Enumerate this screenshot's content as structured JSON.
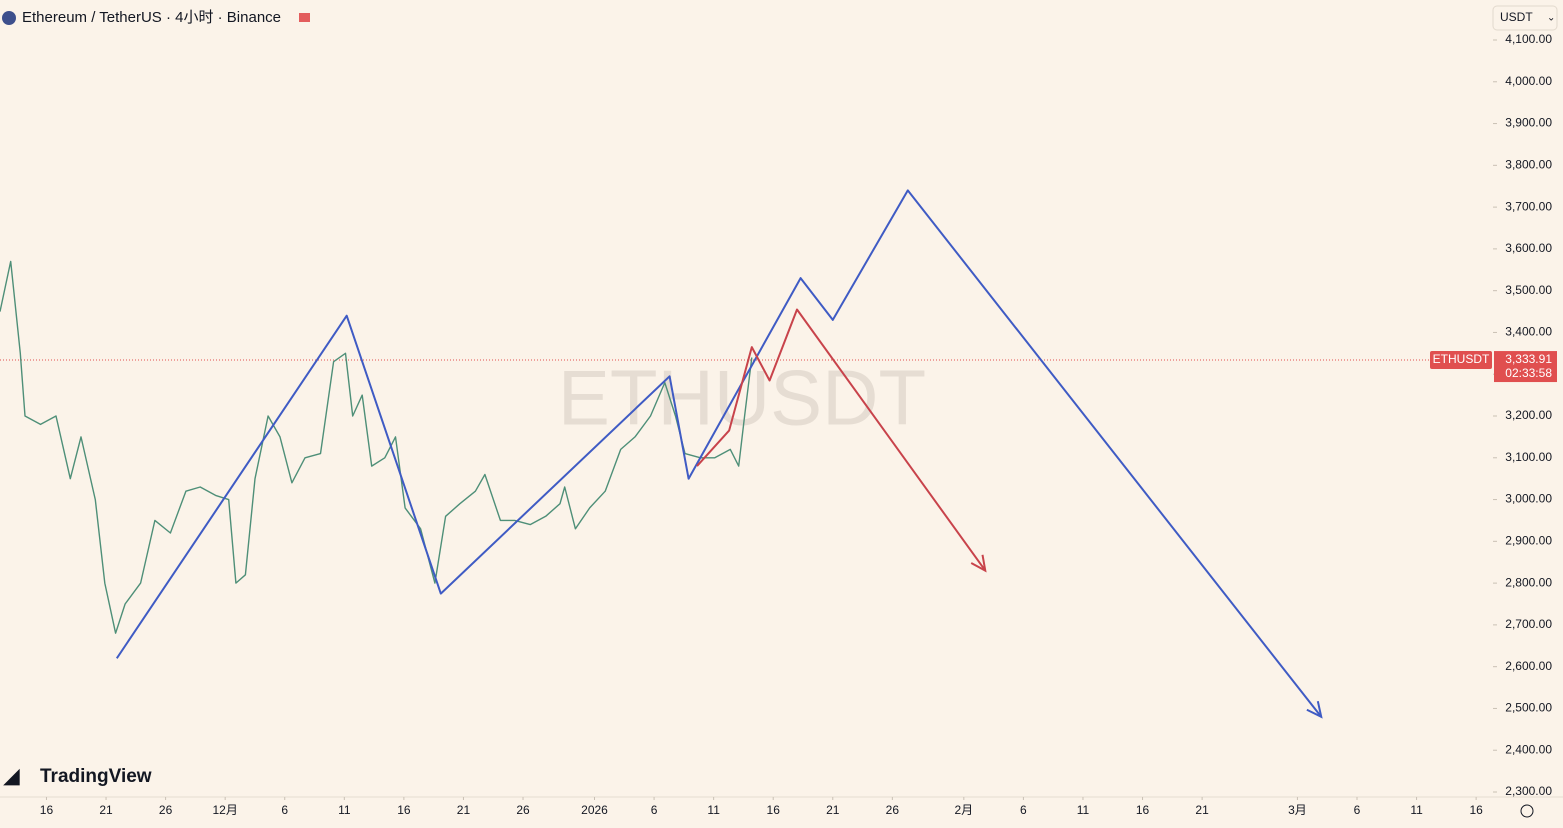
{
  "chart_data": {
    "type": "line",
    "title": "Ethereum / TetherUS · 4小时 · Binance",
    "currency": "USDT",
    "watermark": "ETHUSDT",
    "brand": "TradingView",
    "xlim": [
      -3.9,
      121.5
    ],
    "ylim": [
      2300,
      4100
    ],
    "xticks": [
      {
        "value": 0,
        "label": "16"
      },
      {
        "value": 5,
        "label": "21"
      },
      {
        "value": 10,
        "label": "26"
      },
      {
        "value": 15,
        "label": "12月"
      },
      {
        "value": 20,
        "label": "6"
      },
      {
        "value": 25,
        "label": "11"
      },
      {
        "value": 30,
        "label": "16"
      },
      {
        "value": 35,
        "label": "21"
      },
      {
        "value": 40,
        "label": "26"
      },
      {
        "value": 46,
        "label": "2026"
      },
      {
        "value": 51,
        "label": "6"
      },
      {
        "value": 56,
        "label": "11"
      },
      {
        "value": 61,
        "label": "16"
      },
      {
        "value": 66,
        "label": "21"
      },
      {
        "value": 71,
        "label": "26"
      },
      {
        "value": 77,
        "label": "2月"
      },
      {
        "value": 82,
        "label": "6"
      },
      {
        "value": 87,
        "label": "11"
      },
      {
        "value": 92,
        "label": "16"
      },
      {
        "value": 97,
        "label": "21"
      },
      {
        "value": 105,
        "label": "3月"
      },
      {
        "value": 110,
        "label": "6"
      },
      {
        "value": 115,
        "label": "11"
      },
      {
        "value": 120,
        "label": "16"
      }
    ],
    "yticks": [
      {
        "value": 2300,
        "label": "2,300.00"
      },
      {
        "value": 2400,
        "label": "2,400.00"
      },
      {
        "value": 2500,
        "label": "2,500.00"
      },
      {
        "value": 2600,
        "label": "2,600.00"
      },
      {
        "value": 2700,
        "label": "2,700.00"
      },
      {
        "value": 2800,
        "label": "2,800.00"
      },
      {
        "value": 2900,
        "label": "2,900.00"
      },
      {
        "value": 3000,
        "label": "3,000.00"
      },
      {
        "value": 3100,
        "label": "3,100.00"
      },
      {
        "value": 3200,
        "label": "3,200.00"
      },
      {
        "value": 3300,
        "label": "3,300.00"
      },
      {
        "value": 3400,
        "label": "3,400.00"
      },
      {
        "value": 3500,
        "label": "3,500.00"
      },
      {
        "value": 3600,
        "label": "3,600.00"
      },
      {
        "value": 3700,
        "label": "3,700.00"
      },
      {
        "value": 3800,
        "label": "3,800.00"
      },
      {
        "value": 3900,
        "label": "3,900.00"
      },
      {
        "value": 4000,
        "label": "4,000.00"
      },
      {
        "value": 4100,
        "label": "4,100.00"
      }
    ],
    "price_line": {
      "value": 3333.91,
      "label": "3,333.91",
      "symbol": "ETHUSDT",
      "countdown": "02:33:58",
      "color": "#e04f4f"
    },
    "series": [
      {
        "color": "#4e8f78",
        "arrow": false,
        "x": [
          -3.9,
          -3.0,
          -2.2,
          -1.8,
          -0.5,
          0.8,
          2.0,
          2.9,
          4.1,
          4.9,
          5.8,
          6.6,
          7.9,
          9.1,
          10.4,
          11.7,
          12.9,
          14.2,
          15.3,
          15.9,
          16.7,
          17.5,
          18.6,
          19.6,
          20.6,
          21.7,
          23.0,
          24.1,
          25.1,
          25.7,
          26.5,
          27.3,
          28.4,
          29.3,
          30.1,
          31.4,
          32.6,
          33.5,
          34.7,
          36.0,
          36.8,
          38.1,
          39.3,
          40.6,
          41.9,
          43.1,
          43.5,
          44.4,
          45.6,
          46.9,
          48.2,
          49.4,
          50.7,
          51.9,
          52.8,
          53.6,
          54.9,
          56.1,
          57.4,
          58.1,
          58.6,
          59.2
        ],
        "values": [
          3450,
          3570,
          3350,
          3200,
          3180,
          3200,
          3050,
          3150,
          3000,
          2800,
          2680,
          2750,
          2800,
          2950,
          2920,
          3020,
          3030,
          3010,
          3000,
          2800,
          2820,
          3050,
          3200,
          3150,
          3040,
          3100,
          3110,
          3330,
          3350,
          3200,
          3250,
          3080,
          3100,
          3150,
          2980,
          2930,
          2800,
          2960,
          2990,
          3020,
          3060,
          2950,
          2950,
          2940,
          2960,
          2990,
          3030,
          2930,
          2980,
          3020,
          3120,
          3150,
          3200,
          3280,
          3200,
          3110,
          3100,
          3100,
          3120,
          3080,
          3200,
          3340
        ]
      },
      {
        "color": "#3f5bc4",
        "arrow": true,
        "x": [
          5.9,
          25.2,
          33.1,
          52.3,
          53.9,
          63.3,
          66.0,
          72.3,
          107.0
        ],
        "values": [
          2620,
          3440,
          2775,
          3295,
          3050,
          3530,
          3430,
          3740,
          2480
        ]
      },
      {
        "color": "#c8434b",
        "arrow": true,
        "x": [
          54.6,
          57.3,
          59.2,
          60.7,
          63.0,
          78.8
        ],
        "values": [
          3080,
          3165,
          3365,
          3285,
          3455,
          2830
        ]
      }
    ]
  }
}
